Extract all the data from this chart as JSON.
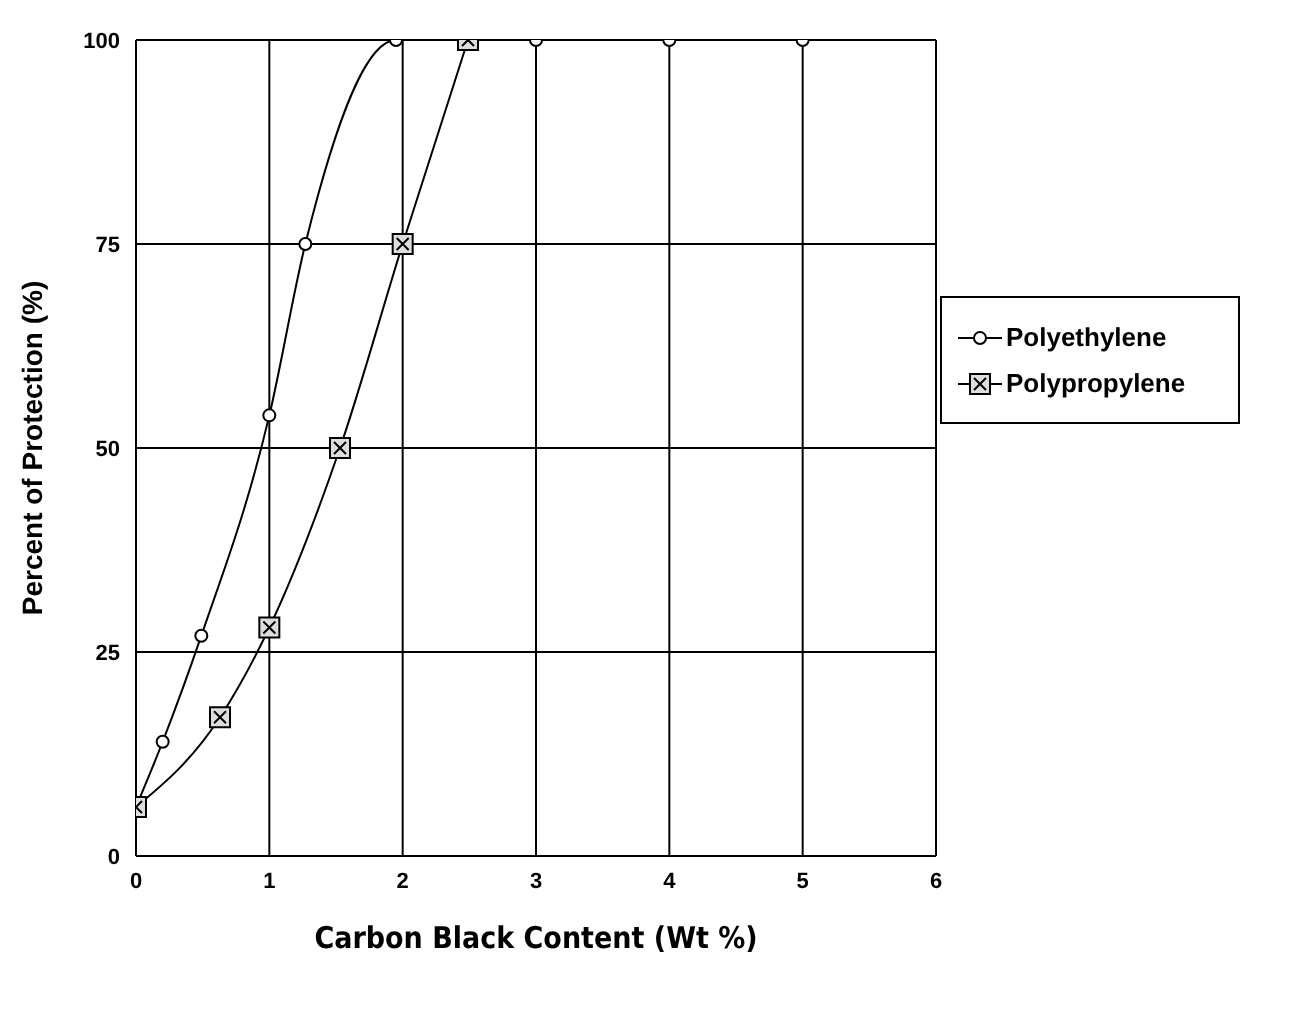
{
  "chart_data": {
    "type": "line",
    "xlabel": "Carbon Black Content (Wt %)",
    "ylabel": "Percent of Protection (%)",
    "xlim": [
      0,
      6
    ],
    "xticks": [
      0,
      1,
      2,
      3,
      4,
      5,
      6
    ],
    "ylim": [
      0,
      100
    ],
    "yticks": [
      0,
      25,
      50,
      75,
      100
    ],
    "grid": true,
    "legend": "right",
    "line_style": "solid",
    "series": [
      {
        "name": "Polyethylene",
        "color": "#000000",
        "marker": "circle",
        "x": [
          0,
          0.2,
          0.49,
          1,
          1.27,
          1.95,
          3,
          4,
          5
        ],
        "values": [
          6,
          14,
          27,
          54,
          75,
          100,
          100,
          100,
          100
        ]
      },
      {
        "name": "Polypropylene",
        "color": "#000000",
        "marker": "cross",
        "x": [
          0,
          0.63,
          1,
          1.53,
          2,
          2.49
        ],
        "values": [
          6,
          17,
          28,
          50,
          75,
          100
        ]
      }
    ]
  }
}
